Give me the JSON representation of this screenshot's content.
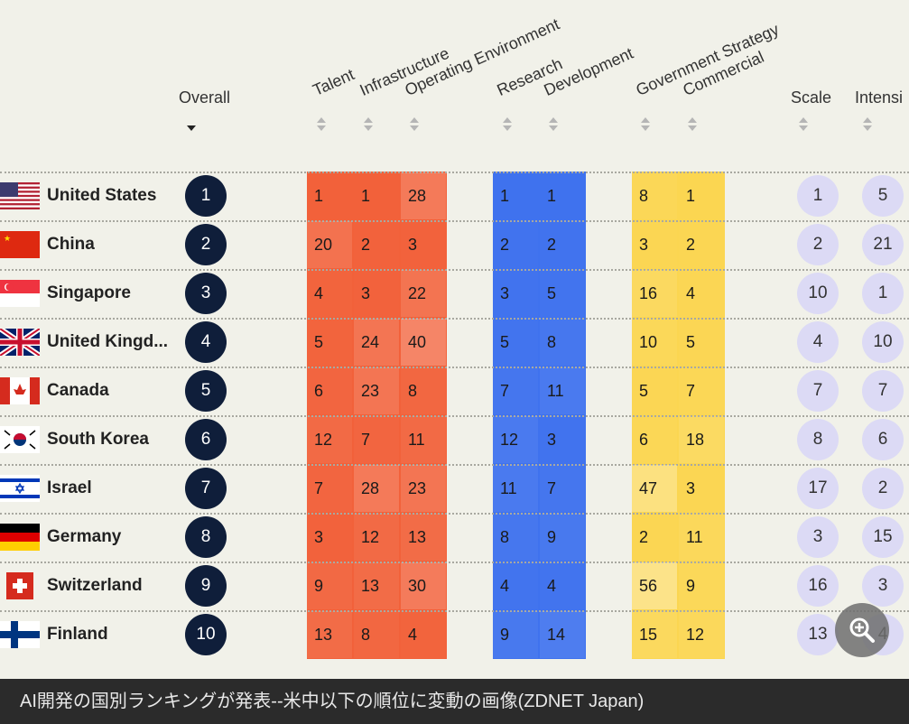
{
  "headers": {
    "overall": "Overall",
    "talent": "Talent",
    "infrastructure": "Infrastructure",
    "operating_environment": "Operating Environment",
    "research": "Research",
    "development": "Development",
    "government_strategy": "Government Strategy",
    "commercial": "Commercial",
    "scale": "Scale",
    "intensity": "Intensi"
  },
  "rows": [
    {
      "flag": "us-flag",
      "country": "United States",
      "overall": "1",
      "talent": "1",
      "infrastructure": "1",
      "operating": "28",
      "research": "1",
      "development": "1",
      "gov": "8",
      "commercial": "1",
      "scale": "1",
      "intensity": "5"
    },
    {
      "flag": "china-flag",
      "country": "China",
      "overall": "2",
      "talent": "20",
      "infrastructure": "2",
      "operating": "3",
      "research": "2",
      "development": "2",
      "gov": "3",
      "commercial": "2",
      "scale": "2",
      "intensity": "21"
    },
    {
      "flag": "singapore-flag",
      "country": "Singapore",
      "overall": "3",
      "talent": "4",
      "infrastructure": "3",
      "operating": "22",
      "research": "3",
      "development": "5",
      "gov": "16",
      "commercial": "4",
      "scale": "10",
      "intensity": "1"
    },
    {
      "flag": "uk-flag",
      "country": "United Kingd...",
      "overall": "4",
      "talent": "5",
      "infrastructure": "24",
      "operating": "40",
      "research": "5",
      "development": "8",
      "gov": "10",
      "commercial": "5",
      "scale": "4",
      "intensity": "10"
    },
    {
      "flag": "canada-flag",
      "country": "Canada",
      "overall": "5",
      "talent": "6",
      "infrastructure": "23",
      "operating": "8",
      "research": "7",
      "development": "11",
      "gov": "5",
      "commercial": "7",
      "scale": "7",
      "intensity": "7"
    },
    {
      "flag": "south-korea-flag",
      "country": "South Korea",
      "overall": "6",
      "talent": "12",
      "infrastructure": "7",
      "operating": "11",
      "research": "12",
      "development": "3",
      "gov": "6",
      "commercial": "18",
      "scale": "8",
      "intensity": "6"
    },
    {
      "flag": "israel-flag",
      "country": "Israel",
      "overall": "7",
      "talent": "7",
      "infrastructure": "28",
      "operating": "23",
      "research": "11",
      "development": "7",
      "gov": "47",
      "commercial": "3",
      "scale": "17",
      "intensity": "2"
    },
    {
      "flag": "germany-flag",
      "country": "Germany",
      "overall": "8",
      "talent": "3",
      "infrastructure": "12",
      "operating": "13",
      "research": "8",
      "development": "9",
      "gov": "2",
      "commercial": "11",
      "scale": "3",
      "intensity": "15"
    },
    {
      "flag": "switzerland-flag",
      "country": "Switzerland",
      "overall": "9",
      "talent": "9",
      "infrastructure": "13",
      "operating": "30",
      "research": "4",
      "development": "4",
      "gov": "56",
      "commercial": "9",
      "scale": "16",
      "intensity": "3"
    },
    {
      "flag": "finland-flag",
      "country": "Finland",
      "overall": "10",
      "talent": "13",
      "infrastructure": "8",
      "operating": "4",
      "research": "9",
      "development": "14",
      "gov": "15",
      "commercial": "12",
      "scale": "13",
      "intensity": "4"
    }
  ],
  "colors": {
    "orange": "#f2613a",
    "blue": "#3f72ee",
    "yellow": "#fbd651",
    "navy": "#0f1e3a",
    "lavender": "#dcdaf5"
  },
  "caption": "AI開発の国別ランキングが発表--米中以下の順位に変動の画像(ZDNET Japan)",
  "zoom_icon": "zoom-in-icon"
}
